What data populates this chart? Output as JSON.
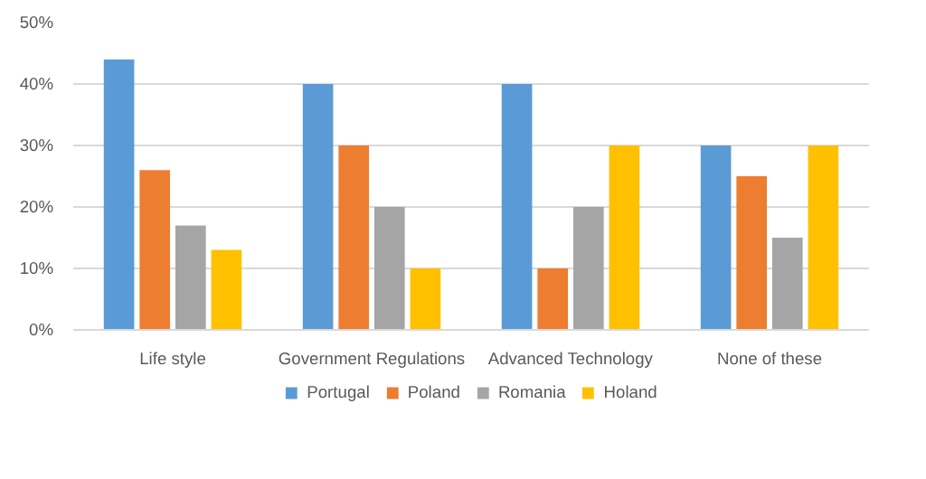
{
  "chart_data": {
    "type": "bar",
    "categories": [
      "Life style",
      "Government Regulations",
      "Advanced Technology",
      "None of these"
    ],
    "series": [
      {
        "name": "Portugal",
        "color": "#5b9bd5",
        "values": [
          44,
          40,
          40,
          30
        ]
      },
      {
        "name": "Poland",
        "color": "#ed7d31",
        "values": [
          26,
          30,
          10,
          25
        ]
      },
      {
        "name": "Romania",
        "color": "#a5a5a5",
        "values": [
          17,
          20,
          20,
          15
        ]
      },
      {
        "name": "Holand",
        "color": "#ffc000",
        "values": [
          13,
          10,
          30,
          30
        ]
      }
    ],
    "ylim": [
      0,
      50
    ],
    "yticks": [
      {
        "value": 0,
        "label": "0%"
      },
      {
        "value": 10,
        "label": "10%"
      },
      {
        "value": 20,
        "label": "20%"
      },
      {
        "value": 30,
        "label": "30%"
      },
      {
        "value": 40,
        "label": "40%"
      },
      {
        "value": 50,
        "label": "50%"
      }
    ],
    "grid": "y",
    "legend": "bottom"
  }
}
